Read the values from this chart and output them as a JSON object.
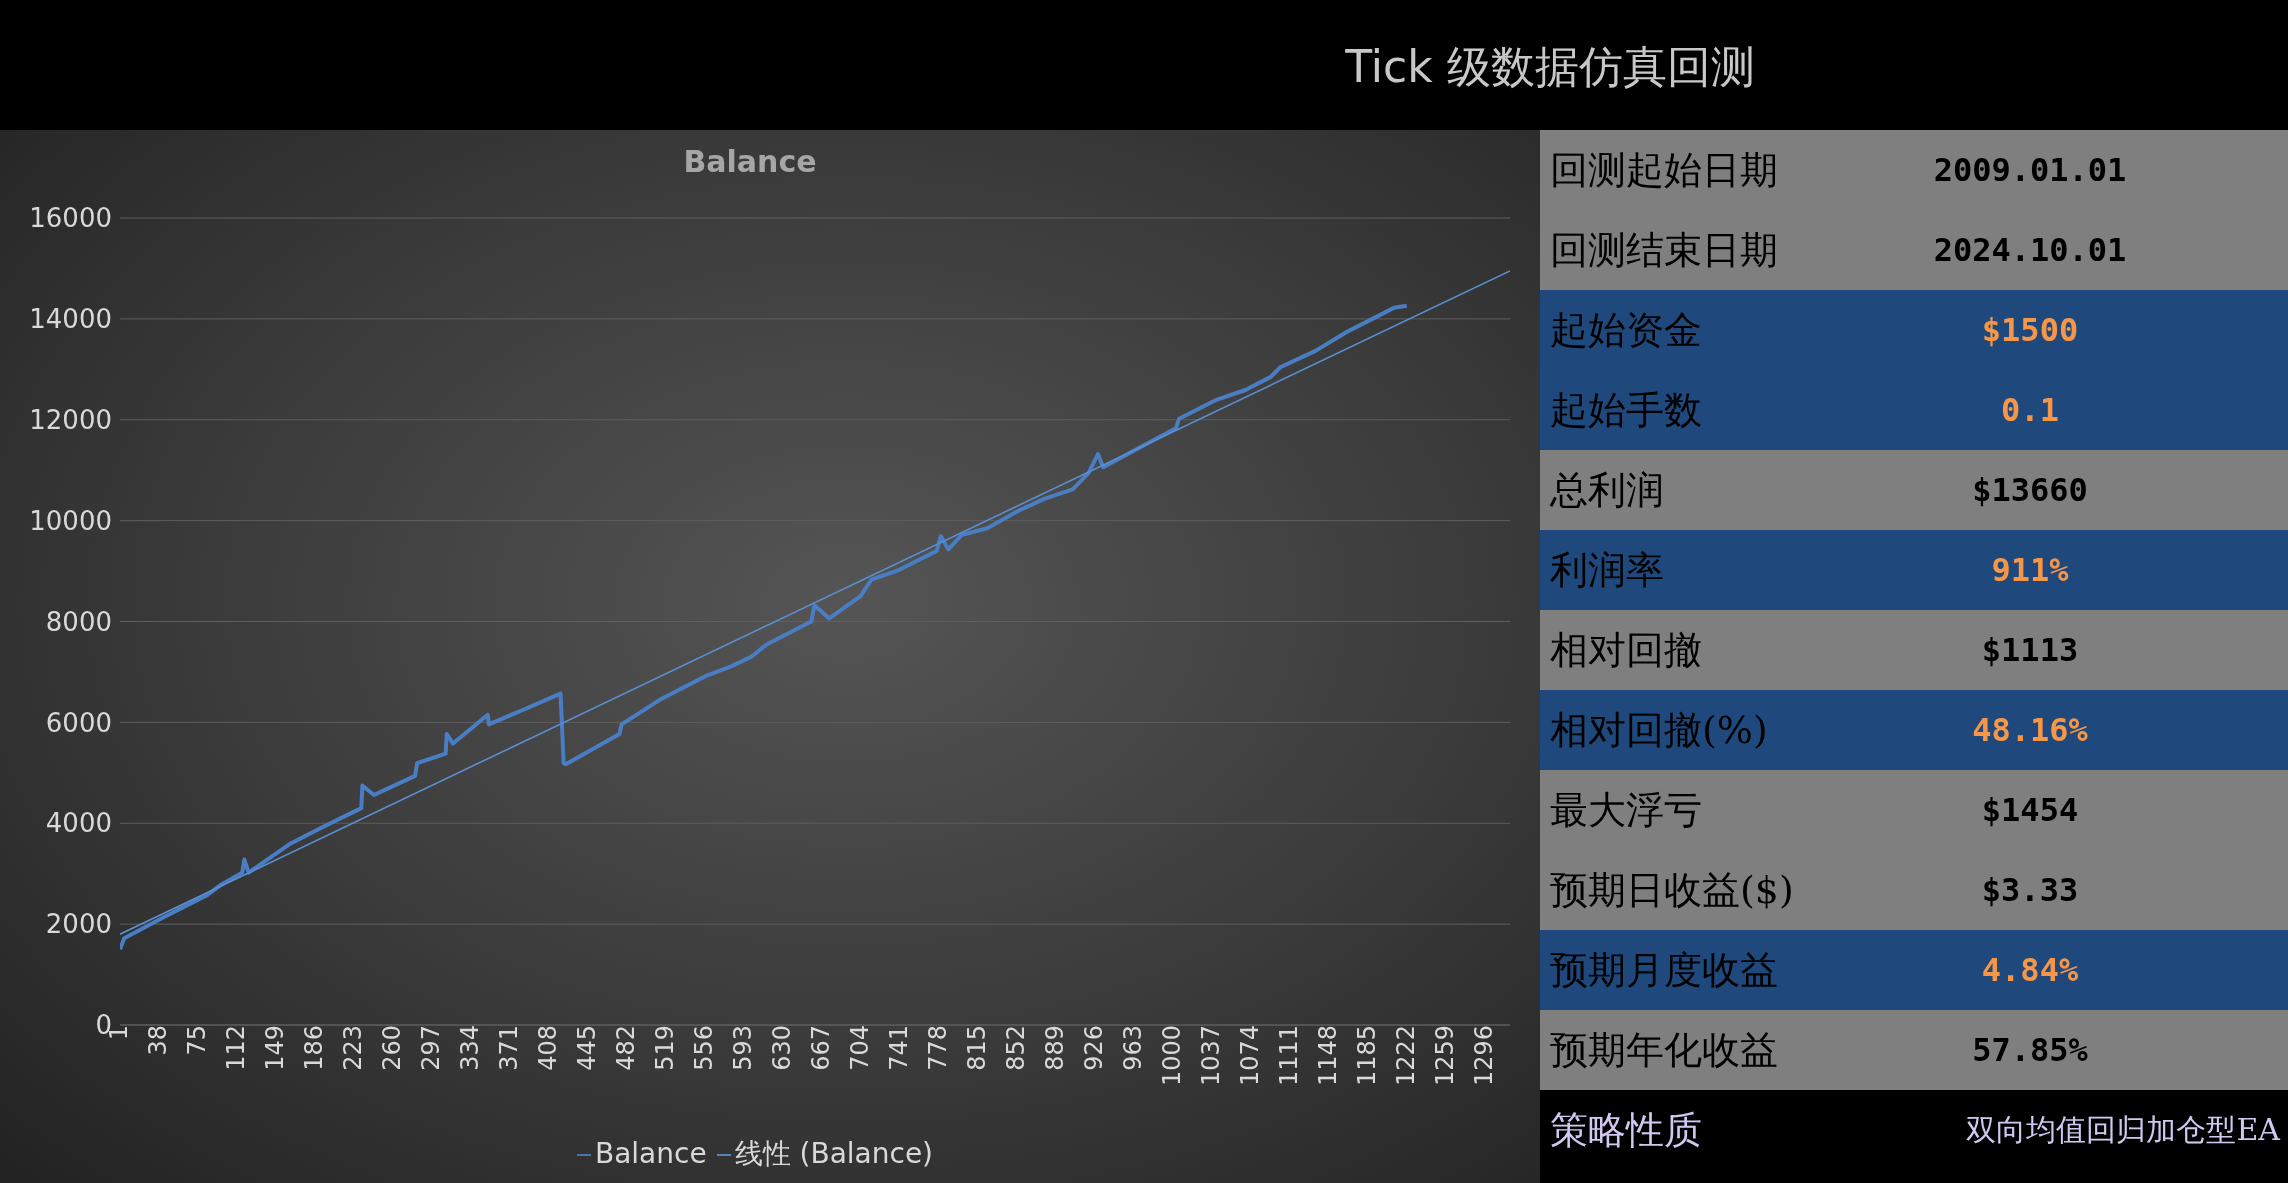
{
  "chart_data": [
    {
      "type": "line",
      "title": "Balance",
      "xlim": [
        1,
        1320
      ],
      "xticks": [
        1,
        38,
        75,
        112,
        149,
        186,
        223,
        260,
        297,
        334,
        371,
        408,
        445,
        482,
        519,
        556,
        593,
        630,
        667,
        704,
        741,
        778,
        815,
        852,
        889,
        926,
        963,
        1000,
        1037,
        1074,
        1111,
        1148,
        1185,
        1222,
        1259,
        1296
      ],
      "ylim": [
        0,
        16000
      ],
      "yticks": [
        0,
        2000,
        4000,
        6000,
        8000,
        10000,
        12000,
        14000,
        16000
      ],
      "grid": "y",
      "legend": "bottom",
      "series": [
        {
          "name": "Balance",
          "color": "#4a7ec4",
          "x": [
            1,
            5,
            42,
            84,
            96,
            117,
            119,
            123,
            163,
            193,
            230,
            231,
            242,
            281,
            283,
            310,
            311,
            317,
            350,
            351,
            387,
            419,
            422,
            424,
            475,
            477,
            515,
            557,
            581,
            600,
            615,
            657,
            660,
            674,
            704,
            714,
            740,
            776,
            780,
            787,
            800,
            824,
            854,
            878,
            905,
            920,
            929,
            934,
            974,
            1003,
            1006,
            1042,
            1069,
            1093,
            1102,
            1135,
            1165,
            1195,
            1210,
            1222
          ],
          "values": [
            1500,
            1720,
            2130,
            2580,
            2770,
            3020,
            3280,
            3020,
            3600,
            3920,
            4300,
            4750,
            4560,
            4940,
            5190,
            5380,
            5770,
            5580,
            6150,
            5960,
            6280,
            6570,
            5190,
            5170,
            5770,
            5960,
            6470,
            6920,
            7110,
            7300,
            7550,
            8000,
            8320,
            8060,
            8510,
            8830,
            9020,
            9400,
            9690,
            9430,
            9720,
            9850,
            10200,
            10430,
            10620,
            10940,
            11320,
            11060,
            11510,
            11830,
            12020,
            12400,
            12590,
            12850,
            13040,
            13360,
            13740,
            14060,
            14220,
            14260
          ]
        },
        {
          "name": "线性 (Balance)",
          "color": "#5b8fd0",
          "type": "line",
          "x": [
            1,
            1320
          ],
          "values": [
            1800,
            14950
          ]
        }
      ]
    },
    {
      "type": "other",
      "title": "Tick 级数据仿真回测",
      "categories": [
        "回测起始日期",
        "回测结束日期",
        "起始资金",
        "起始手数",
        "总利润",
        "利润率",
        "相对回撤",
        "相对回撤(%)",
        "最大浮亏",
        "预期日收益($)",
        "预期月度收益",
        "预期年化收益",
        "策略性质"
      ],
      "value_labels": [
        "2009.01.01",
        "2024.10.01",
        "$1500",
        "0.1",
        "$13660",
        "911%",
        "$1113",
        "48.16%",
        "$1454",
        "$3.33",
        "4.84%",
        "57.85%",
        "双向均值回归加仓型EA"
      ],
      "colors": [
        "#7f7f7f",
        "#7f7f7f",
        "#1f497d",
        "#1f497d",
        "#7f7f7f",
        "#1f497d",
        "#7f7f7f",
        "#1f497d",
        "#7f7f7f",
        "#7f7f7f",
        "#1f497d",
        "#7f7f7f",
        "#000000"
      ]
    }
  ]
}
